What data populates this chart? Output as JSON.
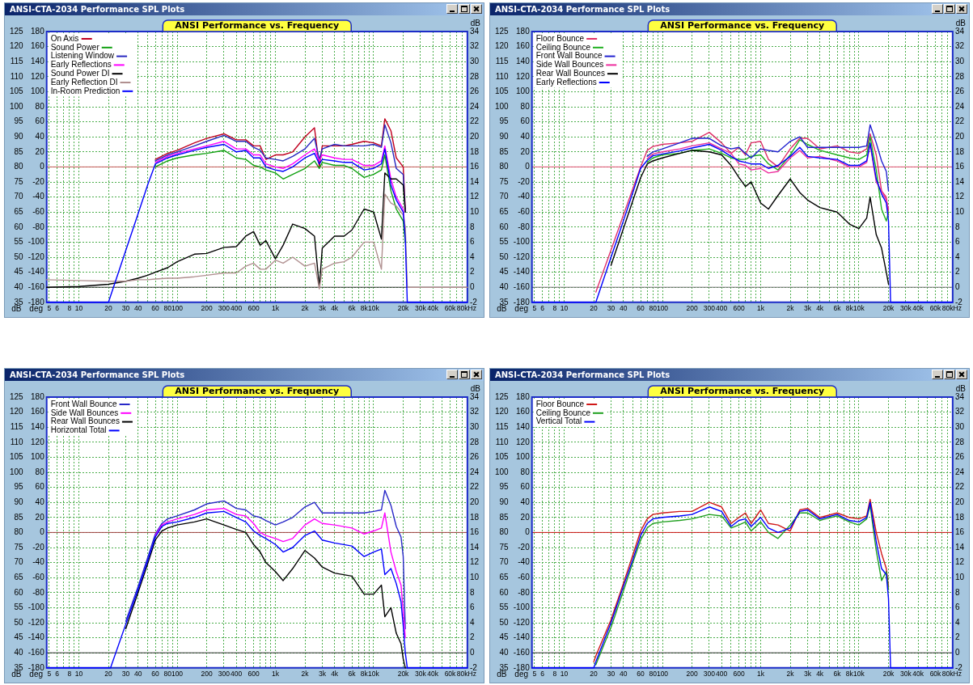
{
  "chart_data": [
    {
      "type": "line",
      "title": "ANSI Performance vs. Frequency",
      "annotations": [
        "ANSI-CTA-2034 Performance SPL Plots"
      ],
      "log": "x",
      "grid": true,
      "legend": "top left",
      "xlabel": "Hz",
      "ylabel": "dB",
      "y2label": "deg",
      "y3label": "dB",
      "xlim": [
        4.7,
        90000
      ],
      "ylim": [
        35,
        125
      ],
      "y2lim": [
        -180,
        180
      ],
      "y3lim": [
        -2,
        34
      ],
      "xticks": [
        5,
        6,
        {
          "value": 7,
          "label": null
        },
        8,
        {
          "value": 9,
          "label": null
        },
        10,
        20,
        30,
        40,
        {
          "value": 50,
          "label": null
        },
        60,
        {
          "value": 70,
          "label": null
        },
        80,
        {
          "value": 90,
          "label": null
        },
        100,
        200,
        300,
        400,
        {
          "value": 500,
          "label": null
        },
        600,
        {
          "value": 700,
          "label": null
        },
        {
          "value": 800,
          "label": null
        },
        {
          "value": 900,
          "label": null
        },
        {
          "value": 1000,
          "label": "1k"
        },
        {
          "value": 2000,
          "label": "2k"
        },
        {
          "value": 3000,
          "label": "3k"
        },
        {
          "value": 4000,
          "label": "4k"
        },
        {
          "value": 5000,
          "label": null
        },
        {
          "value": 6000,
          "label": "6k"
        },
        {
          "value": 7000,
          "label": null
        },
        {
          "value": 8000,
          "label": "8k"
        },
        {
          "value": 9000,
          "label": null
        },
        {
          "value": 10000,
          "label": "10k"
        },
        {
          "value": 20000,
          "label": "20k"
        },
        {
          "value": 30000,
          "label": "30k"
        },
        {
          "value": 40000,
          "label": "40k"
        },
        {
          "value": 50000,
          "label": null
        },
        {
          "value": 60000,
          "label": "60k"
        },
        {
          "value": 70000,
          "label": null
        },
        {
          "value": 80000,
          "label": "80k"
        }
      ],
      "yticks": [
        35,
        40,
        45,
        50,
        55,
        60,
        65,
        70,
        75,
        80,
        85,
        90,
        95,
        100,
        105,
        110,
        115,
        120,
        125
      ],
      "y2ticks": [
        -180,
        -160,
        -140,
        -120,
        -100,
        -80,
        -60,
        -40,
        -20,
        0,
        20,
        40,
        60,
        80,
        100,
        120,
        140,
        160,
        180
      ],
      "y3ticks": [
        -2,
        0,
        2,
        4,
        6,
        8,
        10,
        12,
        14,
        16,
        18,
        20,
        22,
        24,
        26,
        28,
        30,
        32,
        34
      ],
      "ref_lines": [
        {
          "axis": "y",
          "value": 80,
          "color": "#c85a5a"
        },
        {
          "axis": "y3",
          "value": 0,
          "color": "#303030"
        }
      ],
      "x": [
        4.7,
        10,
        20,
        30,
        40,
        50,
        60,
        80,
        100,
        150,
        200,
        300,
        400,
        500,
        600,
        700,
        800,
        1000,
        1200,
        1500,
        2000,
        2500,
        2800,
        3000,
        4000,
        5000,
        6000,
        8000,
        10000,
        12000,
        13000,
        15000,
        17000,
        20000,
        21000,
        22000,
        90000
      ],
      "series": [
        {
          "name": "On Axis",
          "color": "#c00020",
          "values": [
            null,
            null,
            null,
            null,
            null,
            null,
            82.5,
            84.5,
            85.5,
            88,
            89.5,
            91,
            89,
            89,
            87,
            87,
            82.5,
            84,
            84,
            85,
            90,
            93,
            80,
            87,
            87,
            87,
            87.5,
            88.5,
            88,
            87,
            96,
            92,
            83,
            80,
            66,
            null,
            null
          ]
        },
        {
          "name": "Sound Power",
          "color": "#10a010",
          "values": [
            null,
            null,
            null,
            null,
            null,
            null,
            80,
            82,
            83,
            84,
            84.5,
            85.5,
            83,
            82.5,
            80.5,
            80,
            79,
            78,
            76,
            77.5,
            79.5,
            82,
            79.5,
            81.5,
            80.5,
            80.5,
            79.5,
            76.5,
            77.5,
            79,
            84,
            72,
            66,
            62,
            55,
            null,
            null
          ]
        },
        {
          "name": "Listening Window",
          "color": "#2828c0",
          "values": [
            null,
            null,
            null,
            null,
            null,
            null,
            82,
            84,
            85,
            87,
            88.5,
            90.5,
            88.5,
            88.5,
            86.5,
            85.5,
            83,
            82.5,
            82,
            83.5,
            86,
            89.5,
            82.5,
            86,
            87.5,
            87,
            87,
            87,
            87.5,
            86.5,
            94,
            88,
            79.5,
            77.5,
            65,
            null,
            null
          ]
        },
        {
          "name": "Early Reflections",
          "color": "#ff00ff",
          "values": [
            null,
            null,
            null,
            null,
            null,
            null,
            81.5,
            83.5,
            84.5,
            86,
            87,
            88.5,
            86,
            86,
            84,
            84,
            81,
            80,
            79.5,
            81,
            84,
            86,
            82,
            84,
            83,
            82.5,
            82.5,
            80.5,
            80.5,
            82,
            87,
            76,
            70,
            66,
            58,
            null,
            null
          ]
        },
        {
          "name": "Sound Power DI",
          "color": "#000000",
          "axis": "y3",
          "values": [
            0,
            0.1,
            0.4,
            0.8,
            1.2,
            1.6,
            2,
            2.6,
            3.4,
            4.4,
            4.5,
            5.3,
            5.4,
            6.8,
            7.4,
            5.6,
            6.2,
            3.8,
            5.6,
            8.4,
            7.8,
            6.8,
            0,
            5.2,
            6.8,
            6.8,
            7.6,
            10.4,
            10,
            6.4,
            15.2,
            14.4,
            14.4,
            13.6,
            10,
            null,
            null
          ]
        },
        {
          "name": "Early Reflection DI",
          "color": "#b09090",
          "axis": "y3",
          "values": [
            1,
            0.9,
            0.8,
            0.8,
            1,
            1,
            1.1,
            1.2,
            1.2,
            1.4,
            1.6,
            1.9,
            1.9,
            2.8,
            3.2,
            2.4,
            2.4,
            3.6,
            3.2,
            4,
            2.8,
            3.2,
            -0.2,
            2.4,
            3.2,
            3.4,
            4,
            6,
            6,
            2.4,
            12.4,
            11.2,
            10.8,
            9.6,
            8,
            0,
            0
          ]
        },
        {
          "name": "In-Room Prediction",
          "color": "#0000ff",
          "values": [
            35,
            35,
            35,
            52.2,
            64.4,
            73.9,
            81,
            83,
            84,
            85.5,
            86.5,
            87.5,
            85,
            85.5,
            83,
            83,
            80,
            79,
            78.5,
            80,
            83,
            84.5,
            81,
            82.5,
            82,
            81.5,
            81.5,
            79,
            79.5,
            81,
            86,
            74,
            69,
            65,
            56,
            35,
            35
          ]
        }
      ]
    },
    {
      "type": "line",
      "title": "ANSI Performance vs. Frequency",
      "annotations": [
        "ANSI-CTA-2034 Performance SPL Plots"
      ],
      "log": "x",
      "grid": true,
      "legend": "top left",
      "xlabel": "Hz",
      "ylabel": "dB",
      "y2label": "deg",
      "y3label": "dB",
      "xlim": [
        4.7,
        90000
      ],
      "ylim": [
        35,
        125
      ],
      "y2lim": [
        -180,
        180
      ],
      "y3lim": [
        -2,
        34
      ],
      "xticks": [
        5,
        6,
        {
          "value": 7,
          "label": null
        },
        8,
        {
          "value": 9,
          "label": null
        },
        10,
        20,
        30,
        40,
        {
          "value": 50,
          "label": null
        },
        60,
        {
          "value": 70,
          "label": null
        },
        80,
        {
          "value": 90,
          "label": null
        },
        100,
        200,
        300,
        400,
        {
          "value": 500,
          "label": null
        },
        600,
        {
          "value": 700,
          "label": null
        },
        {
          "value": 800,
          "label": null
        },
        {
          "value": 900,
          "label": null
        },
        {
          "value": 1000,
          "label": "1k"
        },
        {
          "value": 2000,
          "label": "2k"
        },
        {
          "value": 3000,
          "label": "3k"
        },
        {
          "value": 4000,
          "label": "4k"
        },
        {
          "value": 5000,
          "label": null
        },
        {
          "value": 6000,
          "label": "6k"
        },
        {
          "value": 7000,
          "label": null
        },
        {
          "value": 8000,
          "label": "8k"
        },
        {
          "value": 9000,
          "label": null
        },
        {
          "value": 10000,
          "label": "10k"
        },
        {
          "value": 20000,
          "label": "20k"
        },
        {
          "value": 30000,
          "label": "30k"
        },
        {
          "value": 40000,
          "label": "40k"
        },
        {
          "value": 50000,
          "label": null
        },
        {
          "value": 60000,
          "label": "60k"
        },
        {
          "value": 70000,
          "label": null
        },
        {
          "value": 80000,
          "label": "80k"
        }
      ],
      "yticks": [
        35,
        40,
        45,
        50,
        55,
        60,
        65,
        70,
        75,
        80,
        85,
        90,
        95,
        100,
        105,
        110,
        115,
        120,
        125
      ],
      "y2ticks": [
        -180,
        -160,
        -140,
        -120,
        -100,
        -80,
        -60,
        -40,
        -20,
        0,
        20,
        40,
        60,
        80,
        100,
        120,
        140,
        160,
        180
      ],
      "y3ticks": [
        -2,
        0,
        2,
        4,
        6,
        8,
        10,
        12,
        14,
        16,
        18,
        20,
        22,
        24,
        26,
        28,
        30,
        32,
        34
      ],
      "ref_lines": [
        {
          "axis": "y",
          "value": 80,
          "color": "#e05070"
        },
        {
          "axis": "y3",
          "value": 0,
          "color": "#707070"
        }
      ],
      "x": [
        4.7,
        10,
        19,
        21,
        30,
        40,
        50,
        60,
        70,
        80,
        100,
        150,
        200,
        300,
        400,
        500,
        600,
        700,
        800,
        1000,
        1200,
        1500,
        2000,
        2500,
        3000,
        4000,
        6000,
        8000,
        10000,
        12000,
        13000,
        15000,
        17000,
        19000,
        20000,
        21000,
        90000
      ],
      "series": [
        {
          "name": "Floor Bounce",
          "color": "#e0306a",
          "values": [
            null,
            null,
            null,
            38.4,
            52.4,
            63.9,
            72.8,
            80,
            85.5,
            86.8,
            87.5,
            88,
            88.5,
            91.5,
            88,
            84.5,
            86.5,
            84,
            88,
            88.5,
            82.5,
            80,
            86,
            89.5,
            89.5,
            86,
            87,
            85,
            84.5,
            86,
            91,
            84,
            72,
            70,
            64,
            null,
            null
          ]
        },
        {
          "name": "Ceiling Bounce",
          "color": "#20b020",
          "values": [
            null,
            null,
            null,
            null,
            null,
            null,
            null,
            null,
            81.5,
            83,
            84,
            84.5,
            85.5,
            86,
            84.5,
            83,
            82.5,
            82.5,
            83.5,
            84,
            81,
            79,
            84,
            89,
            87.5,
            85.5,
            84,
            83,
            82.5,
            84,
            90,
            79,
            66,
            62,
            65,
            null,
            null
          ]
        },
        {
          "name": "Front Wall Bounce",
          "color": "#2020d0",
          "values": [
            null,
            null,
            null,
            null,
            null,
            null,
            null,
            null,
            83.5,
            85,
            86,
            88,
            89.5,
            89.5,
            87,
            86,
            86.5,
            84.5,
            83,
            86,
            85.5,
            85,
            88.5,
            90,
            86.5,
            86.5,
            86.5,
            86.5,
            86.5,
            87,
            94,
            88,
            82,
            78.5,
            72,
            null,
            null
          ]
        },
        {
          "name": "Side Wall Bounces",
          "color": "#ee2e9e",
          "values": [
            null,
            null,
            null,
            null,
            null,
            null,
            null,
            null,
            82.8,
            84.3,
            85,
            86,
            87,
            88,
            86,
            84.5,
            81,
            80.5,
            79,
            79.5,
            78,
            78.5,
            83,
            85.5,
            83,
            83.5,
            82,
            80,
            80,
            81.5,
            87.5,
            75,
            72,
            69,
            66,
            null,
            null
          ]
        },
        {
          "name": "Rear Wall Bounces",
          "color": "#000000",
          "values": [
            null,
            null,
            null,
            null,
            47.3,
            59.4,
            68.8,
            76.4,
            81,
            82,
            83,
            84.5,
            85.5,
            85,
            84,
            80.5,
            76.5,
            73.5,
            75,
            68,
            66,
            70.5,
            76,
            71.5,
            69,
            66.5,
            65,
            61,
            59.5,
            63,
            70,
            57.5,
            53,
            45,
            41,
            null,
            null
          ]
        },
        {
          "name": "Early Reflections",
          "color": "#0000ff",
          "values": [
            35,
            35,
            35,
            35,
            50,
            62,
            71.5,
            79.5,
            82.2,
            83.7,
            84.3,
            85.3,
            86.3,
            87.5,
            85.5,
            83.5,
            82,
            81.5,
            81,
            81,
            79.5,
            80.5,
            83.5,
            86.5,
            83.5,
            83,
            82.5,
            80.5,
            80.5,
            82,
            88,
            76,
            71,
            68,
            62,
            35,
            35
          ]
        }
      ]
    },
    {
      "type": "line",
      "title": "ANSI Performance vs. Frequency",
      "annotations": [
        "ANSI-CTA-2034 Performance SPL Plots"
      ],
      "log": "x",
      "grid": true,
      "legend": "top left",
      "xlabel": "Hz",
      "ylabel": "dB",
      "y2label": "deg",
      "y3label": "dB",
      "xlim": [
        4.7,
        90000
      ],
      "ylim": [
        35,
        125
      ],
      "y2lim": [
        -180,
        180
      ],
      "y3lim": [
        -2,
        34
      ],
      "xticks": [
        5,
        6,
        {
          "value": 7,
          "label": null
        },
        8,
        {
          "value": 9,
          "label": null
        },
        10,
        20,
        30,
        40,
        {
          "value": 50,
          "label": null
        },
        60,
        {
          "value": 70,
          "label": null
        },
        80,
        {
          "value": 90,
          "label": null
        },
        100,
        200,
        300,
        400,
        {
          "value": 500,
          "label": null
        },
        600,
        {
          "value": 700,
          "label": null
        },
        {
          "value": 800,
          "label": null
        },
        {
          "value": 900,
          "label": null
        },
        {
          "value": 1000,
          "label": "1k"
        },
        {
          "value": 2000,
          "label": "2k"
        },
        {
          "value": 3000,
          "label": "3k"
        },
        {
          "value": 4000,
          "label": "4k"
        },
        {
          "value": 5000,
          "label": null
        },
        {
          "value": 6000,
          "label": "6k"
        },
        {
          "value": 7000,
          "label": null
        },
        {
          "value": 8000,
          "label": "8k"
        },
        {
          "value": 9000,
          "label": null
        },
        {
          "value": 10000,
          "label": "10k"
        },
        {
          "value": 20000,
          "label": "20k"
        },
        {
          "value": 30000,
          "label": "30k"
        },
        {
          "value": 40000,
          "label": "40k"
        },
        {
          "value": 50000,
          "label": null
        },
        {
          "value": 60000,
          "label": "60k"
        },
        {
          "value": 70000,
          "label": null
        },
        {
          "value": 80000,
          "label": "80k"
        }
      ],
      "yticks": [
        35,
        40,
        45,
        50,
        55,
        60,
        65,
        70,
        75,
        80,
        85,
        90,
        95,
        100,
        105,
        110,
        115,
        120,
        125
      ],
      "y2ticks": [
        -180,
        -160,
        -140,
        -120,
        -100,
        -80,
        -60,
        -40,
        -20,
        0,
        20,
        40,
        60,
        80,
        100,
        120,
        140,
        160,
        180
      ],
      "y3ticks": [
        -2,
        0,
        2,
        4,
        6,
        8,
        10,
        12,
        14,
        16,
        18,
        20,
        22,
        24,
        26,
        28,
        30,
        32,
        34
      ],
      "ref_lines": [
        {
          "axis": "y",
          "value": 80,
          "color": "#a04040"
        },
        {
          "axis": "y3",
          "value": 0,
          "color": "#303030"
        }
      ],
      "x": [
        4.7,
        10,
        20,
        21,
        30,
        40,
        50,
        60,
        70,
        80,
        100,
        150,
        200,
        300,
        400,
        500,
        600,
        700,
        800,
        1000,
        1200,
        1500,
        2000,
        2500,
        3000,
        4000,
        6000,
        8000,
        10000,
        12000,
        13000,
        15000,
        17000,
        19000,
        20000,
        21000,
        22000,
        90000
      ],
      "series": [
        {
          "name": "Front Wall Bounce",
          "color": "#2828c8",
          "values": [
            null,
            null,
            null,
            null,
            50.5,
            62,
            71.5,
            79.5,
            83,
            84.5,
            85.5,
            87.5,
            89.5,
            90.5,
            88,
            87.5,
            85.5,
            85,
            84,
            82.5,
            83.5,
            85,
            88.5,
            90,
            86.5,
            86.5,
            86.5,
            86.5,
            87,
            87.5,
            94,
            89,
            82,
            78.5,
            72,
            48,
            null,
            null
          ]
        },
        {
          "name": "Side Wall Bounces",
          "color": "#ff00ff",
          "values": [
            null,
            null,
            null,
            null,
            null,
            null,
            null,
            79,
            82.5,
            83.5,
            84.5,
            86,
            87.5,
            88,
            86,
            85.5,
            83,
            80,
            79,
            78,
            77,
            78,
            82.5,
            84.5,
            83,
            82.5,
            81.5,
            79.5,
            80.5,
            81.5,
            86.5,
            73.5,
            67,
            62.5,
            54,
            45,
            null,
            null
          ]
        },
        {
          "name": "Rear Wall Bounces",
          "color": "#000000",
          "values": [
            null,
            null,
            null,
            null,
            48,
            60,
            69.5,
            77.5,
            80.5,
            81.5,
            82.5,
            83.5,
            84.5,
            82.5,
            81,
            80,
            76,
            73.5,
            70,
            67,
            64,
            68,
            74,
            71.5,
            68.5,
            66.5,
            65.5,
            59.5,
            59.5,
            62.5,
            52,
            55,
            46.5,
            43,
            38,
            35,
            null,
            null
          ]
        },
        {
          "name": "Horizontal Total",
          "color": "#0000ff",
          "values": [
            35,
            35,
            35,
            35,
            49.5,
            61,
            70.5,
            78.5,
            82,
            83,
            83.5,
            85,
            86.5,
            87,
            85,
            83.5,
            80.5,
            79,
            78,
            76,
            73.5,
            75,
            79,
            80.5,
            77.5,
            76.5,
            75.5,
            72,
            73.5,
            74.5,
            66,
            68,
            63,
            57,
            49,
            40,
            35,
            35
          ]
        }
      ]
    },
    {
      "type": "line",
      "title": "ANSI Performance vs. Frequency",
      "annotations": [
        "ANSI-CTA-2034 Performance SPL Plots"
      ],
      "log": "x",
      "grid": true,
      "legend": "top left",
      "xlabel": "Hz",
      "ylabel": "dB",
      "y2label": "deg",
      "y3label": "dB",
      "xlim": [
        4.7,
        90000
      ],
      "ylim": [
        35,
        125
      ],
      "y2lim": [
        -180,
        180
      ],
      "y3lim": [
        -2,
        34
      ],
      "xticks": [
        5,
        6,
        {
          "value": 7,
          "label": null
        },
        8,
        {
          "value": 9,
          "label": null
        },
        10,
        20,
        30,
        40,
        {
          "value": 50,
          "label": null
        },
        60,
        {
          "value": 70,
          "label": null
        },
        80,
        {
          "value": 90,
          "label": null
        },
        100,
        200,
        300,
        400,
        {
          "value": 500,
          "label": null
        },
        600,
        {
          "value": 700,
          "label": null
        },
        {
          "value": 800,
          "label": null
        },
        {
          "value": 900,
          "label": null
        },
        {
          "value": 1000,
          "label": "1k"
        },
        {
          "value": 2000,
          "label": "2k"
        },
        {
          "value": 3000,
          "label": "3k"
        },
        {
          "value": 4000,
          "label": "4k"
        },
        {
          "value": 5000,
          "label": null
        },
        {
          "value": 6000,
          "label": "6k"
        },
        {
          "value": 7000,
          "label": null
        },
        {
          "value": 8000,
          "label": "8k"
        },
        {
          "value": 9000,
          "label": null
        },
        {
          "value": 10000,
          "label": "10k"
        },
        {
          "value": 20000,
          "label": "20k"
        },
        {
          "value": 30000,
          "label": "30k"
        },
        {
          "value": 40000,
          "label": "40k"
        },
        {
          "value": 50000,
          "label": null
        },
        {
          "value": 60000,
          "label": "60k"
        },
        {
          "value": 70000,
          "label": null
        },
        {
          "value": 80000,
          "label": "80k"
        }
      ],
      "yticks": [
        35,
        40,
        45,
        50,
        55,
        60,
        65,
        70,
        75,
        80,
        85,
        90,
        95,
        100,
        105,
        110,
        115,
        120,
        125
      ],
      "y2ticks": [
        -180,
        -160,
        -140,
        -120,
        -100,
        -80,
        -60,
        -40,
        -20,
        0,
        20,
        40,
        60,
        80,
        100,
        120,
        140,
        160,
        180
      ],
      "y3ticks": [
        -2,
        0,
        2,
        4,
        6,
        8,
        10,
        12,
        14,
        16,
        18,
        20,
        22,
        24,
        26,
        28,
        30,
        32,
        34
      ],
      "ref_lines": [
        {
          "axis": "y",
          "value": 80,
          "color": "#cc1010"
        },
        {
          "axis": "y3",
          "value": 0,
          "color": "#303030"
        }
      ],
      "x": [
        4.7,
        10,
        19,
        20,
        21,
        30,
        40,
        50,
        60,
        70,
        80,
        100,
        150,
        200,
        300,
        400,
        500,
        600,
        700,
        800,
        1000,
        1200,
        1500,
        2000,
        2500,
        3000,
        4000,
        6000,
        8000,
        10000,
        12000,
        13000,
        15000,
        17000,
        19000,
        20000,
        21000,
        90000
      ],
      "series": [
        {
          "name": "Floor Bounce",
          "color": "#d01818",
          "values": [
            null,
            null,
            null,
            37,
            39,
            51,
            63,
            72.5,
            80.5,
            84.5,
            86,
            86.5,
            87,
            87,
            90,
            88.5,
            83,
            85,
            86.5,
            83,
            87.5,
            83,
            82.5,
            80.5,
            87.5,
            88,
            85,
            86.5,
            85,
            84.5,
            85.5,
            91,
            80,
            73,
            68,
            62,
            null,
            null
          ]
        },
        {
          "name": "Ceiling Bounce",
          "color": "#20a020",
          "values": [
            null,
            null,
            null,
            null,
            36,
            48.5,
            60.5,
            70,
            77.5,
            81.5,
            83,
            83.5,
            84,
            84.5,
            86,
            85.5,
            81.5,
            82.5,
            83.5,
            80.5,
            83.5,
            80,
            78,
            82.5,
            86.5,
            86.5,
            84,
            85.5,
            83.5,
            82.5,
            84.5,
            89,
            74,
            64,
            67,
            61,
            null,
            null
          ]
        },
        {
          "name": "Vertical Total",
          "color": "#0000ff",
          "values": [
            35,
            35,
            35,
            35,
            37,
            50,
            62,
            71,
            79,
            83,
            84.5,
            85,
            85.5,
            86,
            88.5,
            87,
            82,
            84,
            84.5,
            82,
            85,
            81.5,
            80,
            81.5,
            87,
            87.5,
            84.5,
            86,
            84,
            83.5,
            85,
            90,
            77,
            68,
            66,
            58,
            35,
            35
          ]
        }
      ]
    }
  ]
}
